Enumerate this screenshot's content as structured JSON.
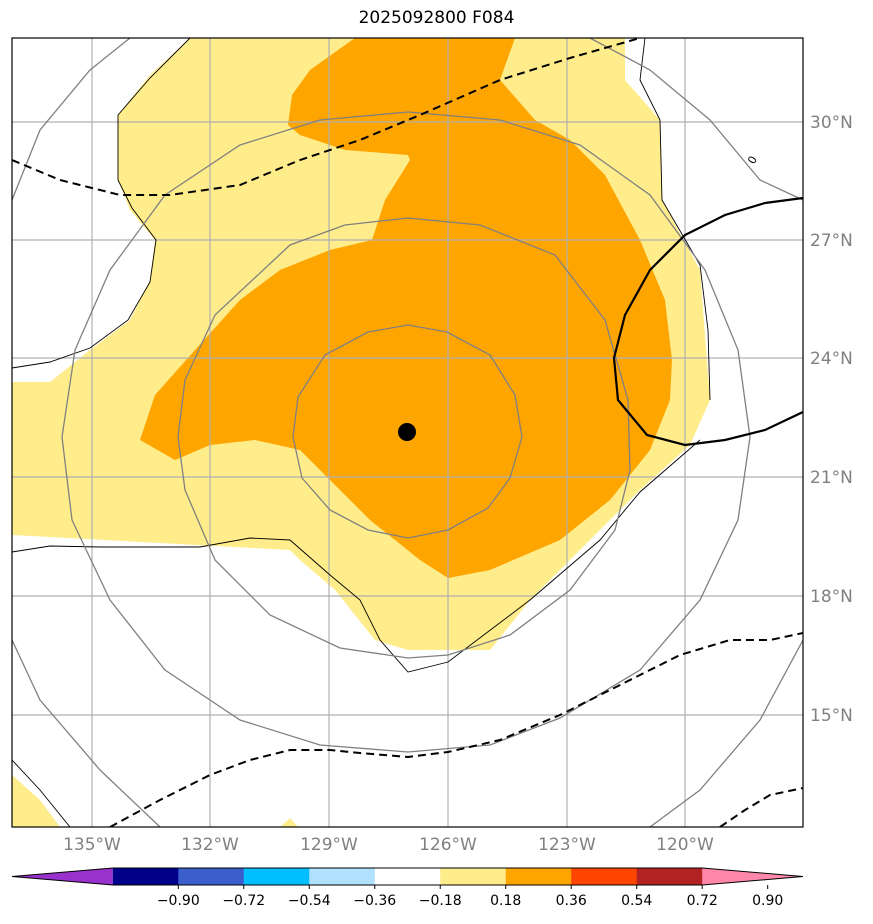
{
  "title": "2025092800 F084",
  "lat_labels": [
    "30°N",
    "27°N",
    "24°N",
    "21°N",
    "18°N",
    "15°N"
  ],
  "lon_labels": [
    "135°W",
    "132°W",
    "129°W",
    "126°W",
    "123°W",
    "120°W"
  ],
  "colorbar": {
    "labels": [
      "−0.90",
      "−0.72",
      "−0.54",
      "−0.36",
      "−0.18",
      "0.18",
      "0.36",
      "0.54",
      "0.72",
      "0.90"
    ],
    "colors": [
      "#9932cc",
      "#00008b",
      "#3a5fcd",
      "#00bfff",
      "#b0e2ff",
      "#ffffff",
      "#ffec8b",
      "#ffa500",
      "#ff4500",
      "#b22222",
      "#ff88aa"
    ]
  },
  "storm_center": {
    "lat": 22.1,
    "lon": -127.0
  },
  "fill_colors": {
    "light": "#ffec8b",
    "dark": "#ffa500"
  },
  "line_colors": {
    "coast": "#000000",
    "ring": "#808080",
    "grid": "#b0b0b0"
  }
}
